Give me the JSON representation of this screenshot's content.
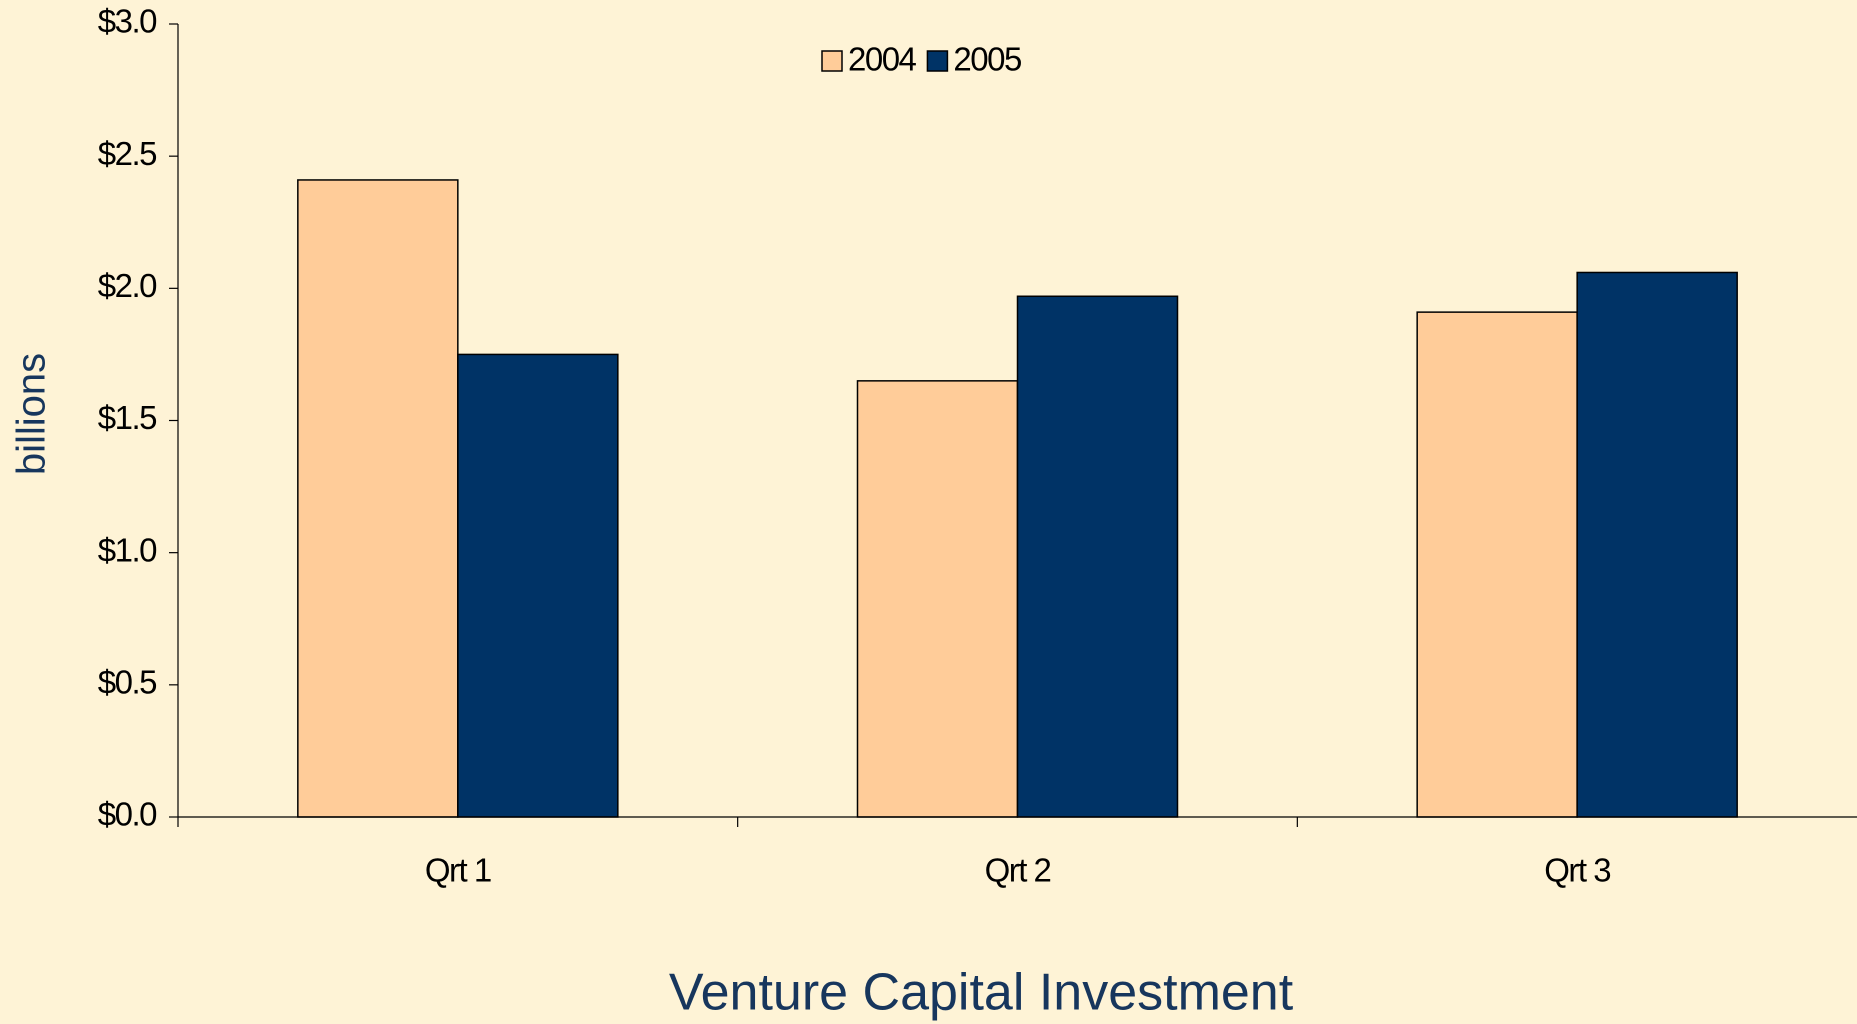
{
  "chart_data": {
    "type": "bar",
    "title": "Venture Capital Investment",
    "y_label": "billions",
    "categories": [
      "Qrt 1",
      "Qrt 2",
      "Qrt 3"
    ],
    "series": [
      {
        "name": "2004",
        "color": "#ffcc99",
        "values": [
          2.41,
          1.65,
          1.91
        ]
      },
      {
        "name": "2005",
        "color": "#003366",
        "values": [
          1.75,
          1.97,
          2.06
        ]
      }
    ],
    "ylim": [
      0,
      3
    ],
    "yticks": [
      {
        "value": 0,
        "label": "$0.0"
      },
      {
        "value": 0.5,
        "label": "$0.5"
      },
      {
        "value": 1,
        "label": "$1.0"
      },
      {
        "value": 1.5,
        "label": "$1.5"
      },
      {
        "value": 2,
        "label": "$2.0"
      },
      {
        "value": 2.5,
        "label": "$2.5"
      },
      {
        "value": 3,
        "label": "$3.0"
      }
    ],
    "legend": "top",
    "grid": false
  }
}
